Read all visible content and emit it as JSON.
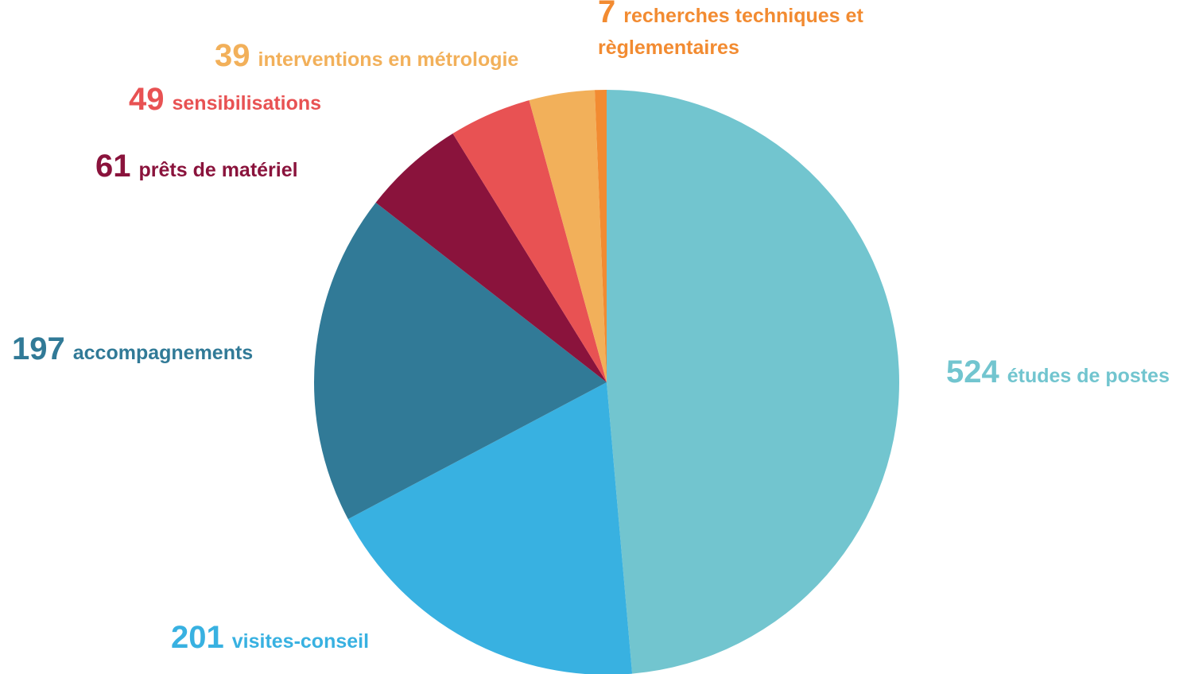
{
  "chart_data": {
    "type": "pie",
    "categories": [
      "études de postes",
      "visites-conseil",
      "accompagnements",
      "prêts de matériel",
      "sensibilisations",
      "interventions en métrologie",
      "recherches techniques et\nrèglementaires"
    ],
    "values": [
      524,
      201,
      197,
      61,
      49,
      39,
      7
    ],
    "colors": [
      "#72c5cf",
      "#38b1e1",
      "#317a97",
      "#8a133c",
      "#e85253",
      "#f2b05a",
      "#f28b31"
    ]
  }
}
